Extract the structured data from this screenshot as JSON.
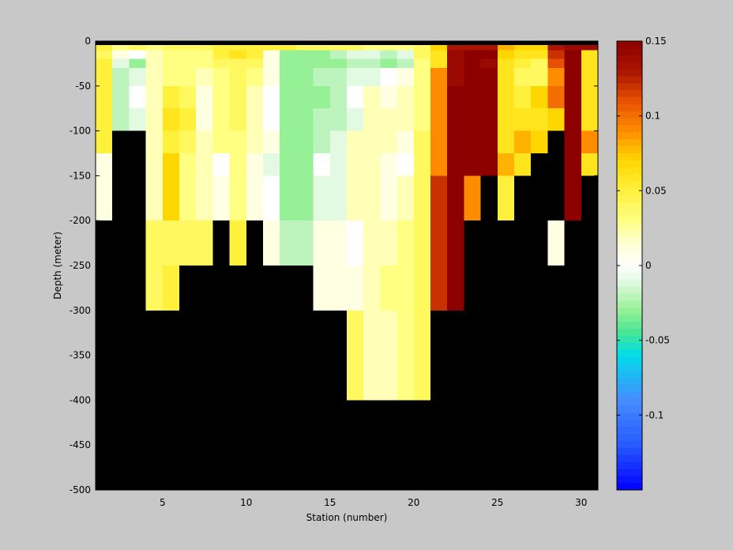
{
  "chart_data": {
    "type": "heatmap",
    "title": "",
    "xlabel": "Station (number)",
    "ylabel": "Depth (meter)",
    "xlim": [
      1,
      31
    ],
    "ylim": [
      -500,
      0
    ],
    "x_ticks": [
      5,
      10,
      15,
      20,
      25,
      30
    ],
    "y_ticks": [
      0,
      -50,
      -100,
      -150,
      -200,
      -250,
      -300,
      -350,
      -400,
      -450,
      -500
    ],
    "colorbar": {
      "limits": [
        -0.15,
        0.15
      ],
      "ticks": [
        0.15,
        0.1,
        0.05,
        0,
        -0.05,
        -0.1
      ],
      "tick_labels": [
        "0.15",
        "0.1",
        "0.05",
        "0",
        "-0.05",
        "-0.1"
      ],
      "colormap": "jet-like diverging (blue-cyan-green-white-yellow-orange-darkred)",
      "levels": 64
    },
    "no_data_color": "#000000",
    "stations": [
      1,
      2,
      3,
      4,
      5,
      6,
      7,
      8,
      9,
      10,
      11,
      12,
      13,
      14,
      15,
      16,
      17,
      18,
      19,
      20,
      21,
      22,
      23,
      24,
      25,
      26,
      27,
      28,
      29,
      30
    ],
    "depth_layers": [
      [
        0,
        -10
      ],
      [
        -10,
        -20
      ],
      [
        -20,
        -30
      ],
      [
        -30,
        -50
      ],
      [
        -50,
        -75
      ],
      [
        -75,
        -100
      ],
      [
        -100,
        -125
      ],
      [
        -125,
        -150
      ],
      [
        -150,
        -200
      ],
      [
        -200,
        -250
      ],
      [
        -250,
        -300
      ],
      [
        -300,
        -400
      ],
      [
        -400,
        -500
      ]
    ],
    "values": [
      [
        0.05,
        0.03,
        0.04,
        0.03,
        0.04,
        0.04,
        0.04,
        0.05,
        0.05,
        0.05,
        0.05,
        0.05,
        0.04,
        0.04,
        0.04,
        0.04,
        0.03,
        0.03,
        0.03,
        0.04,
        0.07,
        0.13,
        0.13,
        0.13,
        0.08,
        0.07,
        0.07,
        0.13,
        0.14,
        0.14
      ],
      [
        0.04,
        0.01,
        0.0,
        0.02,
        0.03,
        0.03,
        0.03,
        0.05,
        0.06,
        0.05,
        0.01,
        -0.03,
        -0.03,
        -0.03,
        -0.02,
        -0.01,
        -0.01,
        -0.02,
        -0.01,
        0.04,
        0.06,
        0.14,
        0.15,
        0.15,
        0.07,
        0.06,
        0.06,
        0.12,
        0.15,
        0.06
      ],
      [
        0.05,
        -0.01,
        -0.03,
        0.02,
        0.03,
        0.03,
        0.03,
        0.04,
        0.04,
        0.04,
        0.01,
        -0.03,
        -0.03,
        -0.03,
        -0.03,
        -0.02,
        -0.02,
        -0.03,
        -0.02,
        0.03,
        0.06,
        0.14,
        0.15,
        0.14,
        0.06,
        0.05,
        0.04,
        0.11,
        0.15,
        0.06
      ],
      [
        0.05,
        -0.02,
        -0.01,
        0.02,
        0.03,
        0.03,
        0.02,
        0.03,
        0.04,
        0.03,
        0.01,
        -0.03,
        -0.03,
        -0.02,
        -0.02,
        -0.01,
        -0.01,
        0.0,
        0.01,
        0.03,
        0.09,
        0.14,
        0.15,
        0.15,
        0.06,
        0.04,
        0.04,
        0.09,
        0.15,
        0.06
      ],
      [
        0.05,
        -0.02,
        0.0,
        0.02,
        0.05,
        0.04,
        0.01,
        0.03,
        0.04,
        0.02,
        0.0,
        -0.03,
        -0.03,
        -0.03,
        -0.02,
        0.0,
        0.02,
        0.01,
        0.02,
        0.03,
        0.09,
        0.15,
        0.15,
        0.15,
        0.06,
        0.05,
        0.07,
        0.1,
        0.15,
        0.06
      ],
      [
        0.05,
        -0.02,
        -0.01,
        0.02,
        0.06,
        0.05,
        0.01,
        0.03,
        0.04,
        0.02,
        0.0,
        -0.03,
        -0.03,
        -0.02,
        -0.02,
        -0.01,
        0.02,
        0.02,
        0.02,
        0.03,
        0.09,
        0.15,
        0.15,
        0.15,
        0.06,
        0.06,
        0.06,
        0.07,
        0.15,
        0.06
      ],
      [
        0.05,
        null,
        null,
        0.02,
        0.05,
        0.04,
        0.02,
        0.03,
        0.03,
        0.02,
        0.01,
        -0.03,
        -0.03,
        -0.02,
        -0.01,
        0.02,
        0.02,
        0.02,
        0.01,
        0.04,
        0.09,
        0.15,
        0.15,
        0.15,
        0.06,
        0.08,
        0.07,
        null,
        0.15,
        0.09
      ],
      [
        0.01,
        null,
        null,
        0.02,
        0.07,
        0.03,
        0.02,
        0.0,
        0.03,
        0.01,
        -0.01,
        -0.03,
        -0.03,
        0.0,
        -0.01,
        0.02,
        0.02,
        0.01,
        0.0,
        0.04,
        0.09,
        0.15,
        0.15,
        0.15,
        0.08,
        0.06,
        null,
        null,
        0.15,
        0.06
      ],
      [
        0.01,
        null,
        null,
        0.02,
        0.07,
        0.03,
        0.02,
        0.01,
        0.03,
        0.01,
        0.0,
        -0.03,
        -0.03,
        -0.01,
        -0.01,
        0.02,
        0.02,
        0.01,
        0.02,
        0.04,
        0.12,
        0.15,
        0.09,
        null,
        0.05,
        null,
        null,
        null,
        0.15,
        null
      ],
      [
        null,
        null,
        null,
        0.04,
        0.04,
        0.04,
        0.04,
        null,
        0.05,
        null,
        0.01,
        -0.02,
        -0.02,
        0.01,
        0.01,
        0.0,
        0.02,
        0.02,
        0.03,
        0.04,
        0.12,
        0.15,
        null,
        null,
        null,
        null,
        null,
        0.01,
        null,
        null
      ],
      [
        null,
        null,
        null,
        0.04,
        0.05,
        null,
        null,
        null,
        null,
        null,
        null,
        null,
        null,
        0.01,
        0.01,
        0.01,
        0.02,
        0.03,
        0.03,
        0.04,
        0.12,
        0.15,
        null,
        null,
        null,
        null,
        null,
        null,
        null,
        null
      ],
      [
        null,
        null,
        null,
        null,
        null,
        null,
        null,
        null,
        null,
        null,
        null,
        null,
        null,
        null,
        null,
        0.04,
        0.02,
        0.02,
        0.03,
        0.04,
        null,
        null,
        null,
        null,
        null,
        null,
        null,
        null,
        null,
        null
      ],
      [
        null,
        null,
        null,
        null,
        null,
        null,
        null,
        null,
        null,
        null,
        null,
        null,
        null,
        null,
        null,
        null,
        null,
        null,
        null,
        null,
        null,
        null,
        null,
        null,
        null,
        null,
        null,
        null,
        null,
        null
      ]
    ]
  },
  "colors": {
    "figure_background": "#c8c8c8",
    "no_data": "#000000"
  }
}
